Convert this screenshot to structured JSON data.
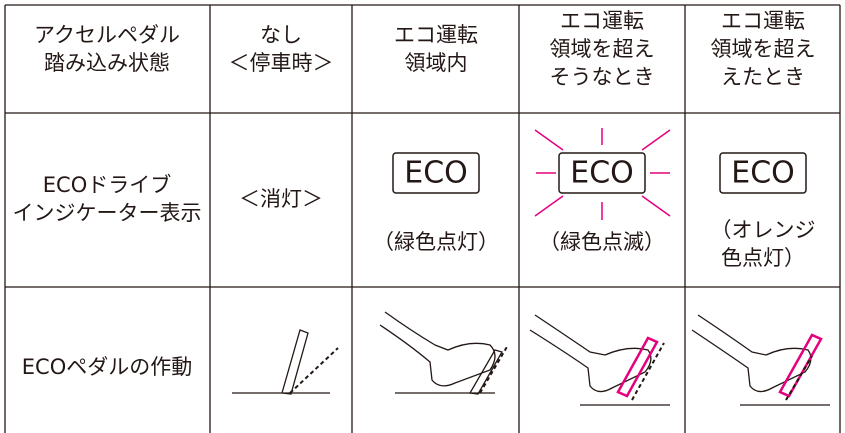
{
  "table": {
    "header": [
      [
        "アクセルペダル",
        "踏み込み状態"
      ],
      [
        "なし",
        "＜停車時＞"
      ],
      [
        "エコ運転",
        "領域内"
      ],
      [
        "エコ運転",
        "領域を超え",
        "そうなとき"
      ],
      [
        "エコ運転",
        "領域を超え",
        "えたとき"
      ]
    ],
    "rows": [
      {
        "label": [
          "ECOドライブ",
          "インジケーター表示"
        ],
        "cells": [
          {
            "text": [
              "＜消灯＞"
            ]
          },
          {
            "badge": "ECO",
            "note": [
              "（緑色点灯）"
            ]
          },
          {
            "badge": "ECO",
            "note": [
              "（緑色点滅）"
            ]
          },
          {
            "badge": "ECO",
            "note": [
              "（オレンジ",
              "色点灯）"
            ]
          }
        ]
      },
      {
        "label": [
          "ECOペダルの作動"
        ]
      }
    ]
  }
}
